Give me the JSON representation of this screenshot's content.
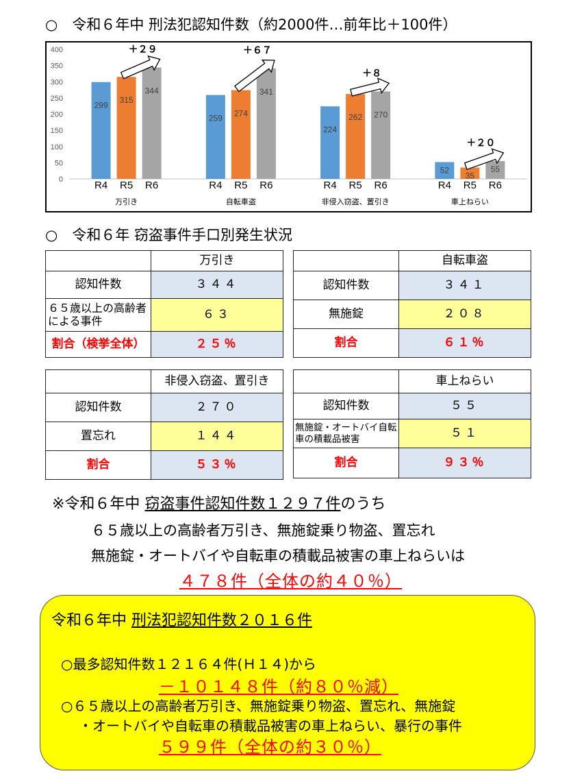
{
  "section1_title": "○　令和６年中 刑法犯認知件数（約2000件…前年比＋100件）",
  "section2_title": "○　令和６年 窃盗事件手口別発生状況",
  "colors": {
    "R4": "#5b9bd5",
    "R5": "#ed7d31",
    "R6": "#a5a5a5",
    "highlight_yellow": "#ffff99",
    "highlight_blue": "#dce6f2",
    "box_yellow": "#ffff00",
    "red": "#ff0000"
  },
  "chart_data": {
    "type": "bar",
    "ylim": [
      0,
      400
    ],
    "yticks": [
      "0",
      "50",
      "100",
      "150",
      "200",
      "250",
      "300",
      "350",
      "400"
    ],
    "grid": false,
    "legend": "none",
    "series_labels": [
      "R4",
      "R5",
      "R6"
    ],
    "categories": [
      "万引き",
      "自転車盗",
      "非侵入窃盗、置引き",
      "車上ねらい"
    ],
    "series": [
      {
        "name": "R4",
        "values": [
          299,
          259,
          224,
          52
        ]
      },
      {
        "name": "R5",
        "values": [
          315,
          274,
          262,
          35
        ]
      },
      {
        "name": "R6",
        "values": [
          344,
          341,
          270,
          55
        ]
      }
    ],
    "annotations": [
      "＋２９",
      "＋６７",
      "＋８",
      "＋２０"
    ]
  },
  "tables": [
    {
      "header": "万引き",
      "rows": [
        {
          "label": "認知件数",
          "value": "３４４"
        },
        {
          "label": "６５歳以上の高齢者による事件",
          "value": "６３"
        },
        {
          "label": "割合（検挙全体）",
          "value": "２５％"
        }
      ]
    },
    {
      "header": "自転車盗",
      "rows": [
        {
          "label": "認知件数",
          "value": "３４１"
        },
        {
          "label": "無施錠",
          "value": "２０８"
        },
        {
          "label": "割合",
          "value": "６１％"
        }
      ]
    },
    {
      "header": "非侵入窃盗、置引き",
      "rows": [
        {
          "label": "認知件数",
          "value": "２７０"
        },
        {
          "label": "置忘れ",
          "value": "１４４"
        },
        {
          "label": "割合",
          "value": "５３％"
        }
      ]
    },
    {
      "header": "車上ねらい",
      "rows": [
        {
          "label": "認知件数",
          "value": "５５"
        },
        {
          "label": "無施錠・オートバイ自転車の積載品被害",
          "value": "５１"
        },
        {
          "label": "割合",
          "value": "９３％"
        }
      ]
    }
  ],
  "note": {
    "line1_prefix": "※令和６年中 ",
    "line1_underlined": "窃盗事件認知件数１２９７件",
    "line1_suffix": "のうち",
    "line2": "６５歳以上の高齢者万引き、無施錠乗り物盗、置忘れ",
    "line3": "無施錠・オートバイや自転車の積載品被害の車上ねらいは",
    "line4": "４７８件（全体の約４０％）"
  },
  "summary": {
    "title_prefix": "令和６年中 ",
    "title_underlined": "刑法犯認知件数２０１６件",
    "item1": "○最多認知件数１２１６４件(Ｈ１４)から",
    "item1_result": "－１０１４８件（約８０％減）",
    "item2_line1": "○６５歳以上の高齢者万引き、無施錠乗り物盗、置忘れ、無施錠",
    "item2_line2": "・オートバイや自転車の積載品被害の車上ねらい、暴行の事件",
    "item2_result": "５９９件（全体の約３０％）"
  }
}
